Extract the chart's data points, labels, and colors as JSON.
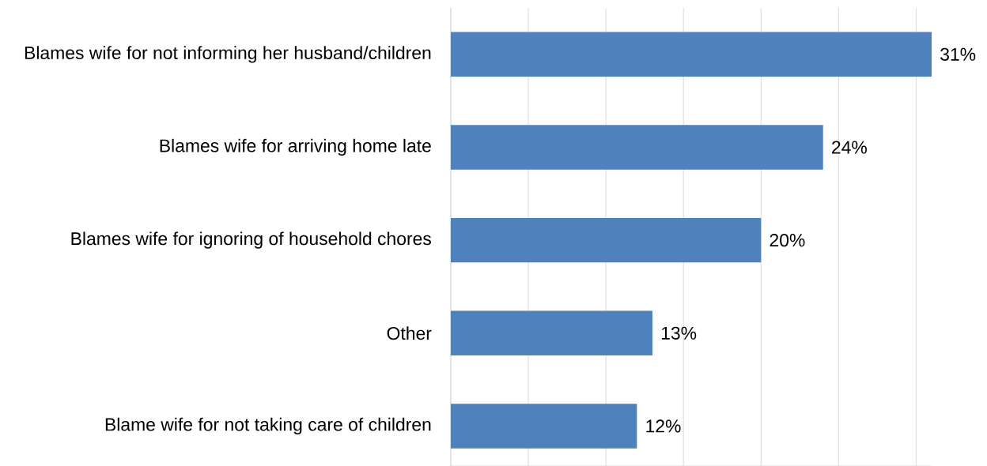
{
  "chart_data": {
    "type": "bar",
    "orientation": "horizontal",
    "categories": [
      "Blames wife for not informing her husband/children",
      "Blames wife for arriving home late",
      "Blames wife for ignoring of household chores",
      "Other",
      "Blame wife for not taking care of children"
    ],
    "values": [
      31,
      24,
      20,
      13,
      12
    ],
    "value_labels": [
      "31%",
      "24%",
      "20%",
      "13%",
      "12%"
    ],
    "color": "#4f81bd",
    "xlim": [
      0,
      31
    ],
    "xticks": [
      {
        "value": 0,
        "label": null
      },
      {
        "value": 5,
        "label": null
      },
      {
        "value": 10,
        "label": null
      },
      {
        "value": 15,
        "label": null
      },
      {
        "value": 20,
        "label": null
      },
      {
        "value": 25,
        "label": null
      },
      {
        "value": 30,
        "label": null
      }
    ],
    "grid": "x",
    "tick_labels": "y"
  }
}
